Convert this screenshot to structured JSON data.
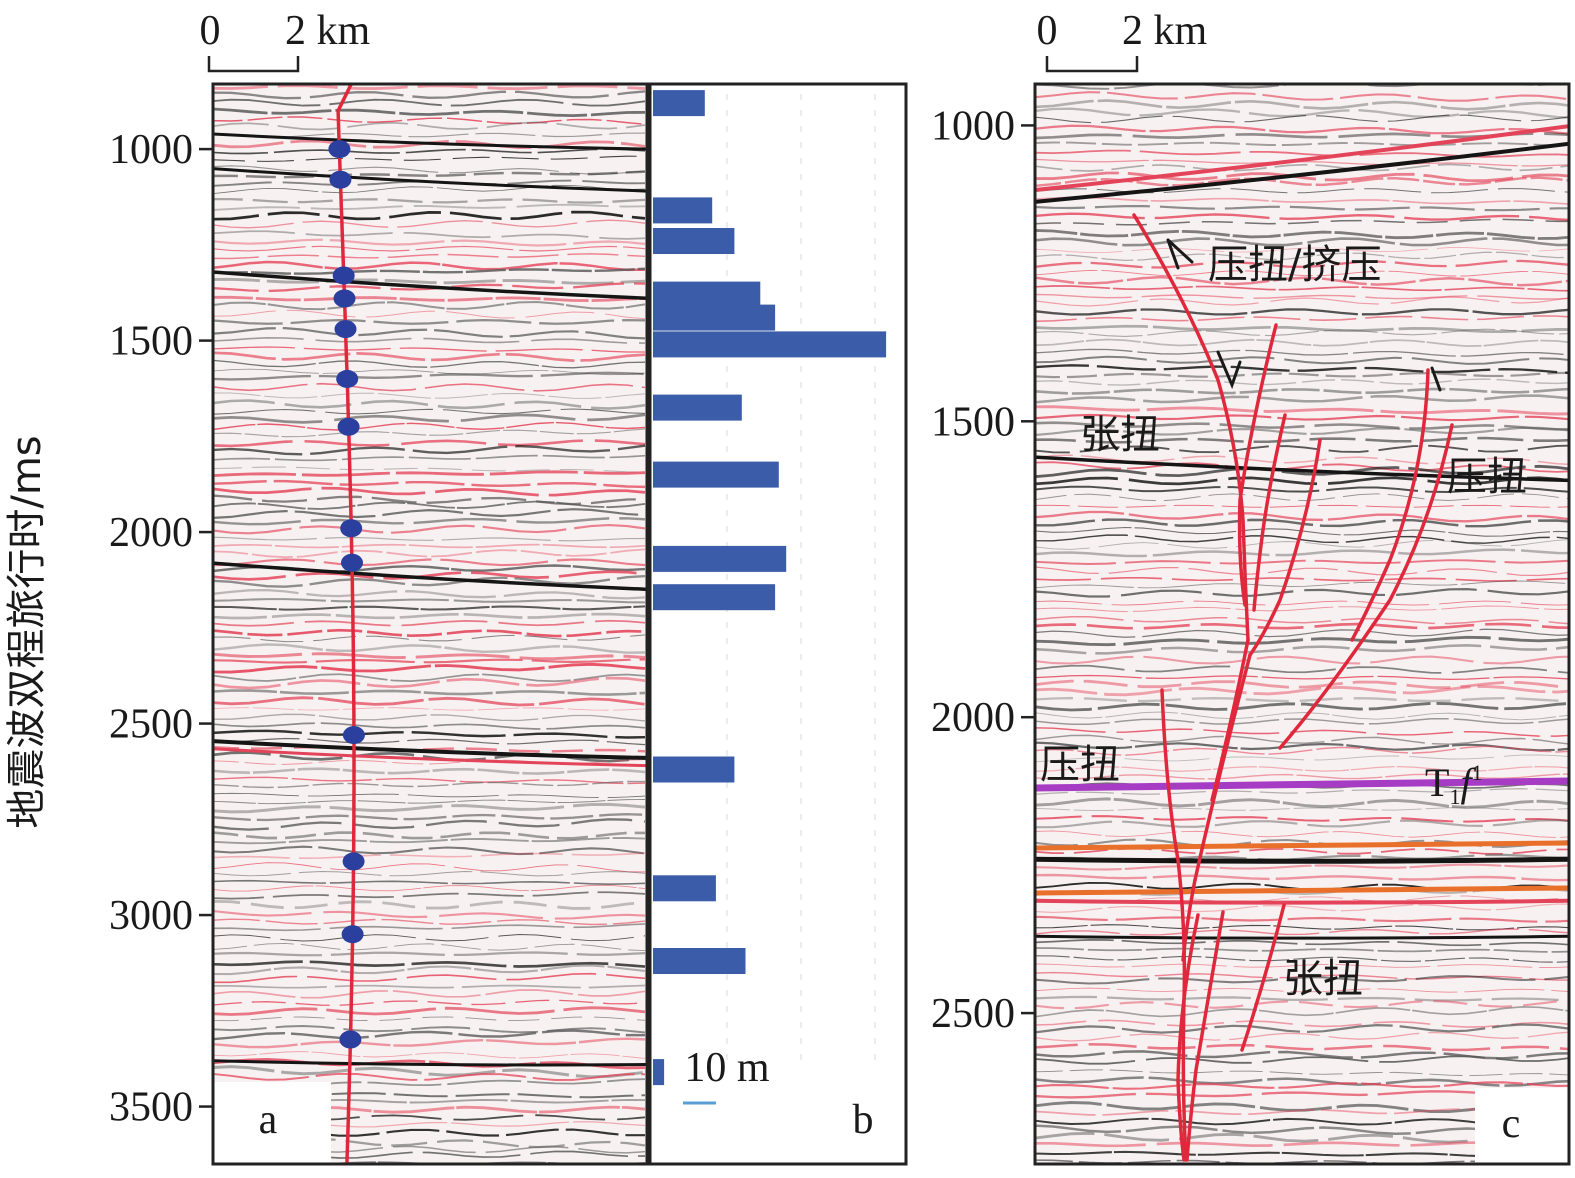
{
  "y_axis_label": "地震波双程旅行时/ms",
  "panel_a": {
    "label": "a",
    "scale_bar": {
      "zero": "0",
      "value": "2 km"
    },
    "ticks": [
      "1000",
      "1500",
      "2000",
      "2500",
      "3000",
      "3500"
    ],
    "tick_values": [
      1000,
      1500,
      2000,
      2500,
      3000,
      3500
    ],
    "time_range": [
      830,
      3650
    ],
    "fault_points_ms": [
      745,
      1000,
      1080,
      1330,
      1390,
      1470,
      1600,
      1725,
      1990,
      2080,
      2530,
      2860,
      3050,
      3325
    ]
  },
  "panel_b": {
    "label": "b",
    "scale_label": "10 m",
    "throw_bars": [
      {
        "t_ms": 880,
        "value": 14
      },
      {
        "t_ms": 1160,
        "value": 16
      },
      {
        "t_ms": 1240,
        "value": 22
      },
      {
        "t_ms": 1380,
        "value": 29
      },
      {
        "t_ms": 1440,
        "value": 33
      },
      {
        "t_ms": 1510,
        "value": 63
      },
      {
        "t_ms": 1675,
        "value": 24
      },
      {
        "t_ms": 1850,
        "value": 34
      },
      {
        "t_ms": 2070,
        "value": 36
      },
      {
        "t_ms": 2170,
        "value": 33
      },
      {
        "t_ms": 2620,
        "value": 22
      },
      {
        "t_ms": 2930,
        "value": 17
      },
      {
        "t_ms": 3120,
        "value": 25
      },
      {
        "t_ms": 3410,
        "value": 3
      }
    ],
    "bar_color": "#3b5ca8"
  },
  "panel_c": {
    "label": "c",
    "scale_bar": {
      "zero": "0",
      "value": "2 km"
    },
    "ticks": [
      "1000",
      "1500",
      "2000",
      "2500"
    ],
    "tick_values": [
      1000,
      1500,
      2000,
      2500
    ],
    "time_range": [
      930,
      2755
    ],
    "annotations": {
      "compress_twist_compress": "压扭/挤压",
      "tension_twist_upper": "张扭",
      "compress_twist_right": "压扭",
      "compress_twist_left": "压扭",
      "tension_twist_lower": "张扭"
    },
    "horizon_label": {
      "main": "T",
      "sub": "1",
      "italic": "f",
      "sup": "1"
    }
  },
  "colors": {
    "fault_red": "#e0283c",
    "well_point_blue": "#2b3f9e",
    "horizon_purple": "#a63cc4",
    "horizon_orange": "#e8702a",
    "reflector_black": "#151515",
    "reflector_red": "#e3445a"
  }
}
